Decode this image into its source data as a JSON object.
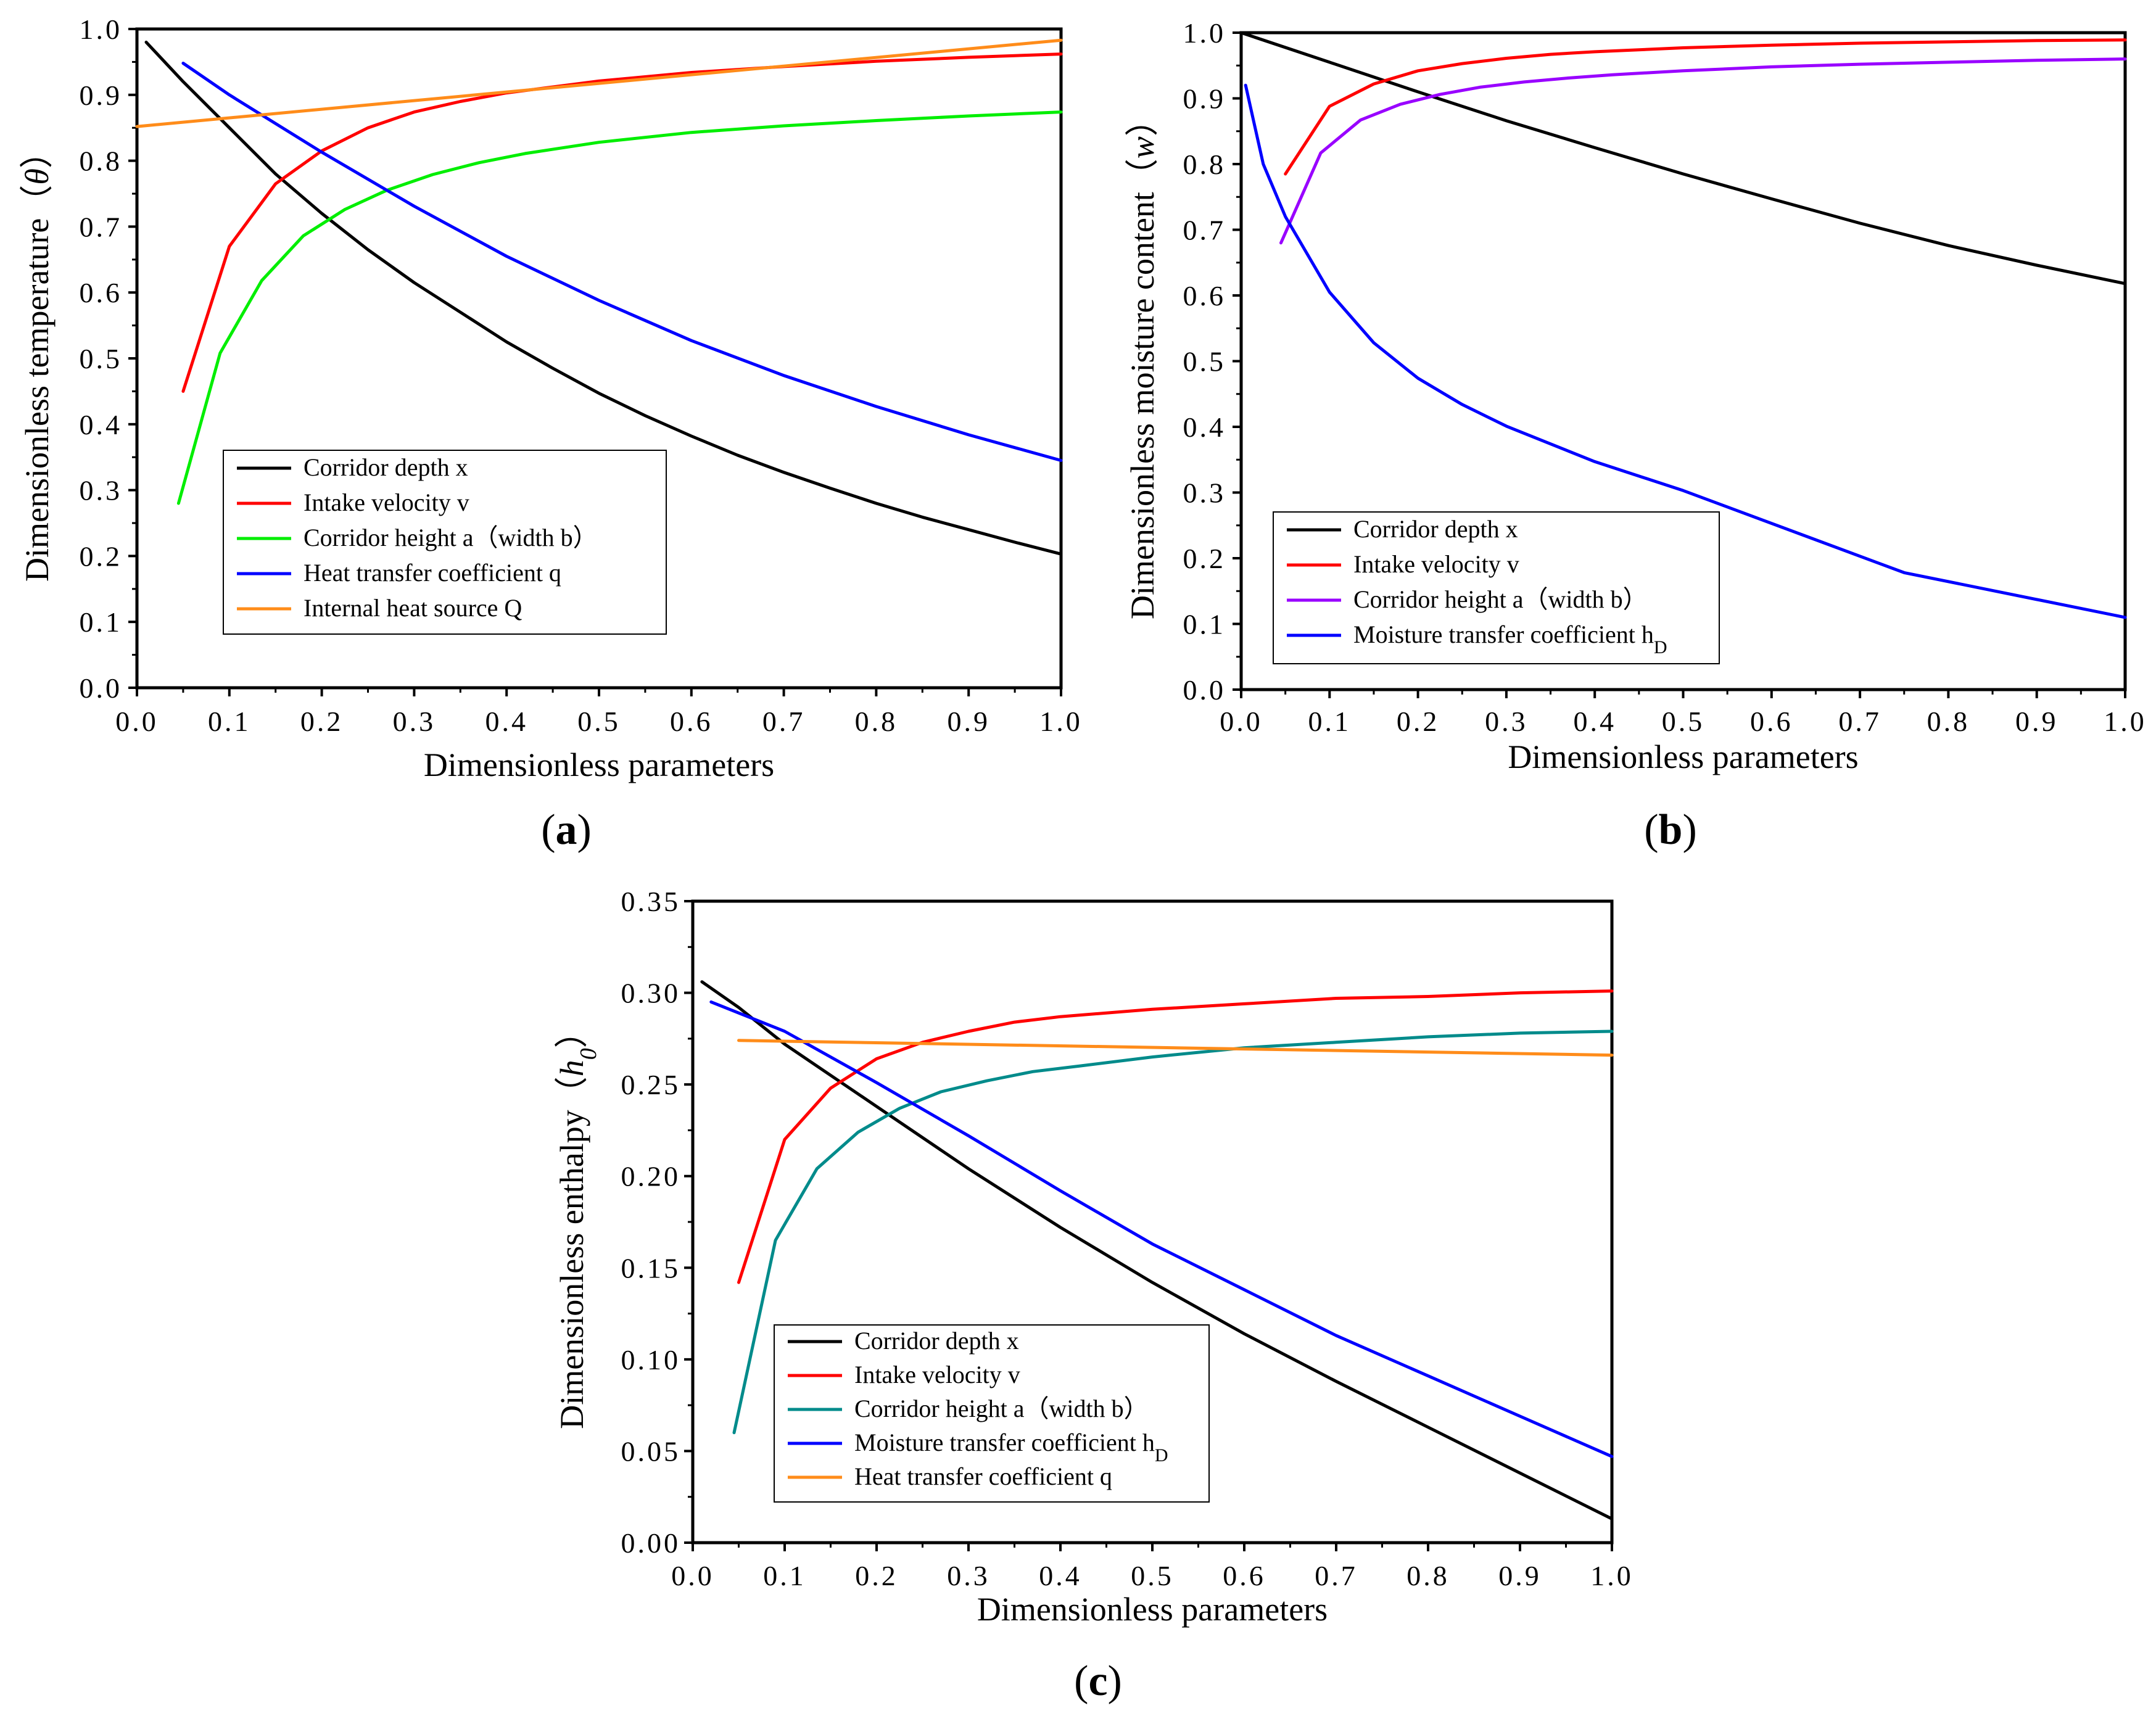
{
  "figure": {
    "panel_labels": [
      "(a)",
      "(b)",
      "(c)"
    ],
    "legend_subscript": "D",
    "italic_symbols": [
      "θ",
      "w",
      "h",
      "0"
    ]
  },
  "chart_data": [
    {
      "id": "a",
      "type": "line",
      "xlabel": "Dimensionless parameters",
      "ylabel": "Dimensionless temperature（θ）",
      "ylabel_parts": [
        "Dimensionless temperature（",
        "θ",
        "）"
      ],
      "xlim": [
        0,
        1
      ],
      "ylim": [
        0,
        1
      ],
      "xticks": [
        0,
        0.1,
        0.2,
        0.3,
        0.4,
        0.5,
        0.6,
        0.7,
        0.8,
        0.9,
        1.0
      ],
      "xtick_labels": [
        "0.0",
        "0.1",
        "0.2",
        "0.3",
        "0.4",
        "0.5",
        "0.6",
        "0.7",
        "0.8",
        "0.9",
        "1.0"
      ],
      "yticks": [
        0,
        0.1,
        0.2,
        0.3,
        0.4,
        0.5,
        0.6,
        0.7,
        0.8,
        0.9,
        1.0
      ],
      "ytick_labels": [
        "0.0",
        "0.1",
        "0.2",
        "0.3",
        "0.4",
        "0.5",
        "0.6",
        "0.7",
        "0.8",
        "0.9",
        "1.0"
      ],
      "legend_location": "lower-left",
      "series": [
        {
          "name": "Corridor depth x",
          "color": "#000000",
          "x": [
            0.01,
            0.05,
            0.1,
            0.15,
            0.2,
            0.25,
            0.3,
            0.35,
            0.4,
            0.45,
            0.5,
            0.55,
            0.6,
            0.65,
            0.7,
            0.75,
            0.8,
            0.85,
            0.9,
            0.95,
            1.0
          ],
          "y": [
            0.98,
            0.92,
            0.85,
            0.78,
            0.72,
            0.665,
            0.615,
            0.57,
            0.525,
            0.485,
            0.447,
            0.413,
            0.382,
            0.353,
            0.327,
            0.303,
            0.28,
            0.259,
            0.24,
            0.221,
            0.203
          ]
        },
        {
          "name": "Intake velocity v",
          "color": "#ff0000",
          "x": [
            0.05,
            0.1,
            0.15,
            0.2,
            0.25,
            0.3,
            0.35,
            0.4,
            0.5,
            0.6,
            0.7,
            0.8,
            0.9,
            1.0
          ],
          "y": [
            0.45,
            0.67,
            0.765,
            0.815,
            0.85,
            0.874,
            0.89,
            0.903,
            0.921,
            0.934,
            0.943,
            0.951,
            0.957,
            0.962
          ]
        },
        {
          "name": "Corridor height a（width b）",
          "color": "#00ee00",
          "x": [
            0.045,
            0.09,
            0.135,
            0.18,
            0.225,
            0.27,
            0.32,
            0.37,
            0.42,
            0.5,
            0.6,
            0.7,
            0.8,
            0.9,
            1.0
          ],
          "y": [
            0.28,
            0.508,
            0.618,
            0.686,
            0.726,
            0.755,
            0.779,
            0.797,
            0.811,
            0.828,
            0.843,
            0.853,
            0.861,
            0.868,
            0.874
          ]
        },
        {
          "name": "Heat transfer coefficient q",
          "color": "#0000ff",
          "x": [
            0.05,
            0.1,
            0.2,
            0.3,
            0.4,
            0.5,
            0.6,
            0.7,
            0.8,
            0.9,
            1.0
          ],
          "y": [
            0.948,
            0.9,
            0.813,
            0.731,
            0.655,
            0.588,
            0.527,
            0.474,
            0.427,
            0.384,
            0.345
          ]
        },
        {
          "name": "Internal heat source Q",
          "color": "#ff8c1a",
          "x": [
            0.0,
            1.0
          ],
          "y": [
            0.852,
            0.983
          ]
        }
      ]
    },
    {
      "id": "b",
      "type": "line",
      "xlabel": "Dimensionless parameters",
      "ylabel": "Dimensionless moisture content（w）",
      "ylabel_parts": [
        "Dimensionless moisture content（",
        "w",
        "）"
      ],
      "xlim": [
        0,
        1
      ],
      "ylim": [
        0,
        1
      ],
      "xticks": [
        0,
        0.1,
        0.2,
        0.3,
        0.4,
        0.5,
        0.6,
        0.7,
        0.8,
        0.9,
        1.0
      ],
      "xtick_labels": [
        "0.0",
        "0.1",
        "0.2",
        "0.3",
        "0.4",
        "0.5",
        "0.6",
        "0.7",
        "0.8",
        "0.9",
        "1.0"
      ],
      "yticks": [
        0,
        0.1,
        0.2,
        0.3,
        0.4,
        0.5,
        0.6,
        0.7,
        0.8,
        0.9,
        1.0
      ],
      "ytick_labels": [
        "0.0",
        "0.1",
        "0.2",
        "0.3",
        "0.4",
        "0.5",
        "0.6",
        "0.7",
        "0.8",
        "0.9",
        "1.0"
      ],
      "legend_location": "lower-left",
      "series": [
        {
          "name": "Corridor depth x",
          "color": "#000000",
          "x": [
            0.0,
            0.1,
            0.2,
            0.3,
            0.4,
            0.5,
            0.6,
            0.7,
            0.8,
            0.9,
            1.0
          ],
          "y": [
            1.0,
            0.955,
            0.91,
            0.866,
            0.825,
            0.785,
            0.747,
            0.71,
            0.676,
            0.646,
            0.618
          ]
        },
        {
          "name": "Intake velocity v",
          "color": "#ff0000",
          "x": [
            0.05,
            0.1,
            0.15,
            0.2,
            0.25,
            0.3,
            0.35,
            0.4,
            0.5,
            0.6,
            0.7,
            0.8,
            0.9,
            1.0
          ],
          "y": [
            0.785,
            0.888,
            0.922,
            0.942,
            0.953,
            0.961,
            0.967,
            0.971,
            0.977,
            0.981,
            0.984,
            0.986,
            0.988,
            0.989
          ]
        },
        {
          "name": "Corridor height a（width b）",
          "color": "#9900ff",
          "x": [
            0.045,
            0.09,
            0.135,
            0.18,
            0.225,
            0.27,
            0.32,
            0.37,
            0.42,
            0.5,
            0.6,
            0.7,
            0.8,
            0.9,
            1.0
          ],
          "y": [
            0.68,
            0.817,
            0.867,
            0.891,
            0.906,
            0.917,
            0.925,
            0.931,
            0.936,
            0.942,
            0.948,
            0.952,
            0.955,
            0.958,
            0.96
          ]
        },
        {
          "name": "Moisture transfer coefficient h",
          "color": "#0000ff",
          "x": [
            0.005,
            0.025,
            0.05,
            0.1,
            0.15,
            0.2,
            0.25,
            0.3,
            0.4,
            0.5,
            0.75,
            1.0
          ],
          "y": [
            0.92,
            0.8,
            0.72,
            0.605,
            0.528,
            0.474,
            0.434,
            0.401,
            0.347,
            0.303,
            0.178,
            0.11
          ]
        }
      ]
    },
    {
      "id": "c",
      "type": "line",
      "xlabel": "Dimensionless parameters",
      "ylabel": "Dimensionless enthalpy（h0）",
      "ylabel_parts": [
        "Dimensionless enthalpy（",
        "h",
        "0",
        "）"
      ],
      "xlim": [
        0,
        1
      ],
      "ylim": [
        0,
        0.35
      ],
      "xticks": [
        0,
        0.1,
        0.2,
        0.3,
        0.4,
        0.5,
        0.6,
        0.7,
        0.8,
        0.9,
        1.0
      ],
      "xtick_labels": [
        "0.0",
        "0.1",
        "0.2",
        "0.3",
        "0.4",
        "0.5",
        "0.6",
        "0.7",
        "0.8",
        "0.9",
        "1.0"
      ],
      "yticks": [
        0,
        0.05,
        0.1,
        0.15,
        0.2,
        0.25,
        0.3,
        0.35
      ],
      "ytick_labels": [
        "0.00",
        "0.05",
        "0.10",
        "0.15",
        "0.20",
        "0.25",
        "0.30",
        "0.35"
      ],
      "legend_location": "lower-left",
      "series": [
        {
          "name": "Corridor depth x",
          "color": "#000000",
          "x": [
            0.01,
            0.05,
            0.1,
            0.2,
            0.3,
            0.4,
            0.5,
            0.6,
            0.7,
            0.8,
            0.9,
            1.0
          ],
          "y": [
            0.306,
            0.292,
            0.272,
            0.238,
            0.204,
            0.172,
            0.142,
            0.114,
            0.088,
            0.063,
            0.038,
            0.013
          ]
        },
        {
          "name": "Intake velocity v",
          "color": "#ff0000",
          "x": [
            0.05,
            0.1,
            0.15,
            0.2,
            0.25,
            0.3,
            0.35,
            0.4,
            0.5,
            0.6,
            0.7,
            0.8,
            0.9,
            1.0
          ],
          "y": [
            0.142,
            0.22,
            0.248,
            0.264,
            0.273,
            0.279,
            0.284,
            0.287,
            0.291,
            0.294,
            0.297,
            0.298,
            0.3,
            0.301
          ]
        },
        {
          "name": "Corridor height a（width b）",
          "color": "#008b8b",
          "x": [
            0.045,
            0.09,
            0.135,
            0.18,
            0.225,
            0.27,
            0.32,
            0.37,
            0.42,
            0.5,
            0.6,
            0.7,
            0.8,
            0.9,
            1.0
          ],
          "y": [
            0.06,
            0.165,
            0.204,
            0.224,
            0.237,
            0.246,
            0.252,
            0.257,
            0.26,
            0.265,
            0.27,
            0.273,
            0.276,
            0.278,
            0.279
          ]
        },
        {
          "name": "Moisture transfer coefficient h",
          "color": "#0000ff",
          "x": [
            0.02,
            0.1,
            0.2,
            0.3,
            0.4,
            0.5,
            0.6,
            0.7,
            0.8,
            0.9,
            1.0
          ],
          "y": [
            0.295,
            0.279,
            0.251,
            0.222,
            0.192,
            0.163,
            0.138,
            0.113,
            0.091,
            0.069,
            0.047
          ]
        },
        {
          "name": "Heat transfer coefficient q",
          "color": "#ff8c1a",
          "x": [
            0.05,
            1.0
          ],
          "y": [
            0.274,
            0.266
          ]
        }
      ]
    }
  ]
}
